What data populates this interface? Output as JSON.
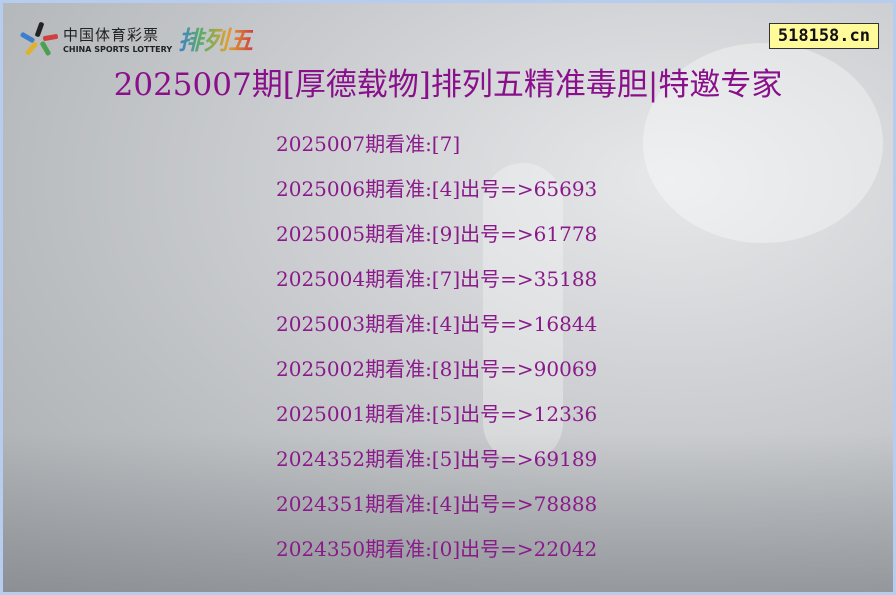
{
  "logo": {
    "cn": "中国体育彩票",
    "en": "CHINA SPORTS LOTTERY",
    "game": "排列五"
  },
  "site_badge": "518158.cn",
  "title": "2025007期[厚德载物]排列五精准毒胆|特邀专家",
  "rows": [
    "2025007期看准:[7]",
    "2025006期看准:[4]出号=>65693",
    "2025005期看准:[9]出号=>61778",
    "2025004期看准:[7]出号=>35188",
    "2025003期看准:[4]出号=>16844",
    "2025002期看准:[8]出号=>90069",
    "2025001期看准:[5]出号=>12336",
    "2024352期看准:[5]出号=>69189",
    "2024351期看准:[4]出号=>78888",
    "2024350期看准:[0]出号=>22042"
  ],
  "colors": {
    "text": "#8a1a8a",
    "border": "#b7cdee",
    "badge": "#fffb9a"
  }
}
